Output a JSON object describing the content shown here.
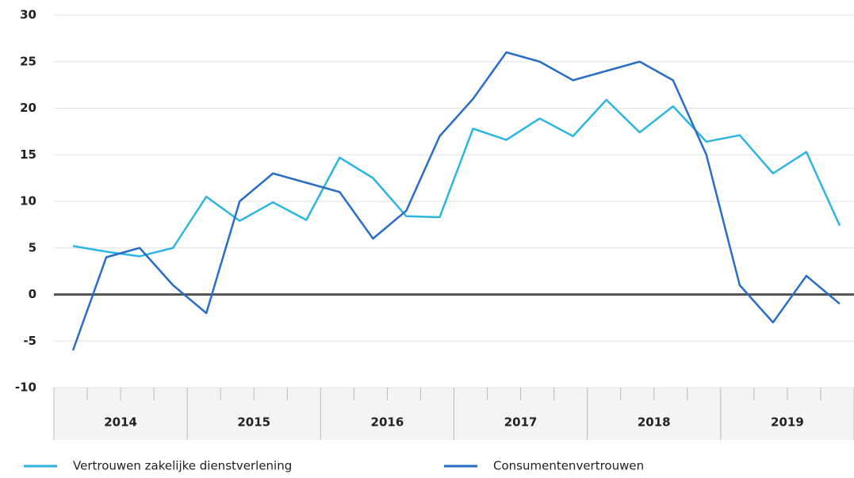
{
  "chart_data": {
    "type": "line",
    "categories": [
      null,
      null,
      null,
      null,
      null,
      null,
      null,
      null,
      null,
      null,
      null,
      null,
      null,
      null,
      null,
      null,
      null,
      null,
      null,
      null,
      null,
      null,
      null,
      null
    ],
    "years": [
      "2014",
      "2015",
      "2016",
      "2017",
      "2018",
      "2019"
    ],
    "series": [
      {
        "name": "Vertrouwen zakelijke dienstverlening",
        "color": "#2bb5e0",
        "values": [
          5.2,
          4.6,
          4.1,
          5.0,
          10.5,
          7.9,
          9.9,
          8.0,
          14.7,
          12.5,
          8.4,
          8.3,
          17.8,
          16.6,
          18.9,
          17.0,
          20.9,
          17.4,
          20.2,
          16.4,
          17.1,
          13.0,
          15.3,
          7.4
        ]
      },
      {
        "name": "Consumentenvertrouwen",
        "color": "#2a6dc6",
        "values": [
          -6,
          4,
          5,
          1,
          -2,
          10,
          13,
          12,
          11,
          6,
          9,
          17,
          21,
          26,
          25,
          23,
          24,
          25,
          23,
          15,
          1,
          -3,
          2,
          -1
        ]
      }
    ],
    "ylim": [
      -10,
      30
    ],
    "yticks": [
      -10,
      -5,
      0,
      5,
      10,
      15,
      20,
      25,
      30
    ],
    "grid": true
  }
}
